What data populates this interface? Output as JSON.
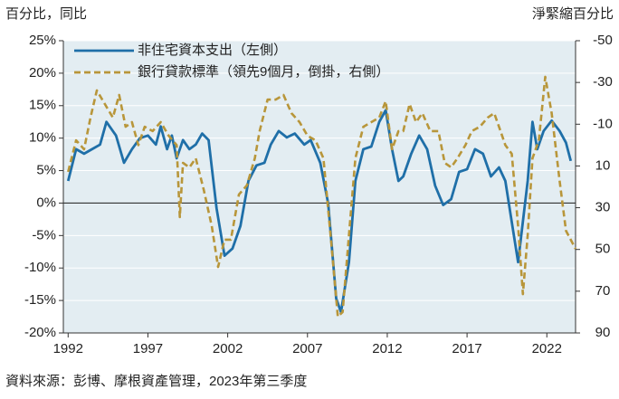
{
  "chart_data": {
    "type": "line",
    "ylabel": "百分比，同比",
    "y2label": "淨緊縮百分比",
    "source": "資料來源：彭博、摩根資產管理，2023年第三季度",
    "xlim": [
      1991.7,
      2023.8
    ],
    "xticks": [
      1992,
      1997,
      2002,
      2007,
      2012,
      2017,
      2022
    ],
    "ylim": [
      -20,
      25
    ],
    "yticks": [
      {
        "value": -20,
        "label": "-20%"
      },
      {
        "value": -15,
        "label": "-15%"
      },
      {
        "value": -10,
        "label": "-10%"
      },
      {
        "value": -5,
        "label": "-5%"
      },
      {
        "value": 0,
        "label": "0%"
      },
      {
        "value": 5,
        "label": "5%"
      },
      {
        "value": 10,
        "label": "10%"
      },
      {
        "value": 15,
        "label": "15%"
      },
      {
        "value": 20,
        "label": "20%"
      },
      {
        "value": 25,
        "label": "25%"
      }
    ],
    "y2lim": [
      -50,
      90
    ],
    "y2_inverted": true,
    "y2ticks": [
      -50,
      -30,
      -10,
      10,
      30,
      50,
      70,
      90
    ],
    "grid": true,
    "legend": "top-left",
    "series": [
      {
        "name": "非住宅資本支出（左側）",
        "color": "#1f6fa8",
        "style": "solid",
        "axis": "y",
        "x": [
          1992.0,
          1992.5,
          1993.0,
          1993.5,
          1994.0,
          1994.4,
          1995.0,
          1995.5,
          1996.0,
          1996.5,
          1997.0,
          1997.5,
          1997.8,
          1998.2,
          1998.5,
          1998.8,
          1999.2,
          1999.6,
          2000.0,
          2000.4,
          2000.8,
          2001.3,
          2001.8,
          2002.3,
          2002.8,
          2003.3,
          2003.8,
          2004.3,
          2004.7,
          2005.2,
          2005.7,
          2006.2,
          2006.8,
          2007.2,
          2007.8,
          2008.3,
          2008.8,
          2009.1,
          2009.6,
          2010.0,
          2010.5,
          2011.0,
          2011.5,
          2011.9,
          2012.3,
          2012.7,
          2013.0,
          2013.5,
          2014.0,
          2014.5,
          2015.0,
          2015.5,
          2016.0,
          2016.5,
          2017.0,
          2017.5,
          2018.0,
          2018.5,
          2019.0,
          2019.4,
          2019.8,
          2020.2,
          2020.8,
          2021.1,
          2021.4,
          2021.8,
          2022.3,
          2022.8,
          2023.2,
          2023.5
        ],
        "values": [
          3.4,
          8.3,
          7.6,
          8.3,
          9,
          12.5,
          10.4,
          6.2,
          8.3,
          10,
          10.4,
          9,
          11.8,
          8.3,
          10.4,
          6.9,
          9.7,
          8.3,
          9,
          10.7,
          9.7,
          -0.8,
          -8.1,
          -7,
          -3.5,
          3.4,
          5.8,
          6.2,
          9,
          11.1,
          10.1,
          10.7,
          9,
          9.7,
          6.2,
          -0.1,
          -14.7,
          -16.8,
          -9.1,
          3.4,
          8.3,
          8.7,
          12.5,
          14.3,
          8.3,
          3.4,
          4.1,
          7.6,
          10.4,
          8.3,
          2.7,
          -0.3,
          0.6,
          4.8,
          5.2,
          8.3,
          7.6,
          4.1,
          5.5,
          3.4,
          -2.9,
          -9.1,
          3.4,
          12.5,
          8.3,
          11.1,
          12.7,
          11.1,
          9.3,
          6.5
        ]
      },
      {
        "name": "銀行貸款標準（領先9個月，倒掛，右側）",
        "color": "#b8963a",
        "style": "dashed",
        "axis": "y2",
        "x": [
          1992.0,
          1992.5,
          1993.0,
          1993.4,
          1993.8,
          1994.3,
          1994.8,
          1995.2,
          1995.6,
          1996.0,
          1996.4,
          1996.8,
          1997.3,
          1997.8,
          1998.3,
          1998.8,
          1999.0,
          1999.2,
          1999.6,
          2000.0,
          2000.5,
          2001.0,
          2001.4,
          2001.8,
          2002.2,
          2002.7,
          2003.2,
          2003.7,
          2004.0,
          2004.5,
          2005.0,
          2005.5,
          2006.0,
          2006.5,
          2007.0,
          2007.5,
          2008.0,
          2008.5,
          2008.9,
          2009.2,
          2009.6,
          2010.0,
          2010.5,
          2011.0,
          2011.5,
          2011.9,
          2012.3,
          2012.7,
          2013.0,
          2013.4,
          2013.8,
          2014.2,
          2014.7,
          2015.2,
          2015.6,
          2016.0,
          2016.4,
          2016.9,
          2017.3,
          2017.8,
          2018.3,
          2018.7,
          2019.1,
          2019.4,
          2019.8,
          2020.2,
          2020.5,
          2020.8,
          2021.1,
          2021.5,
          2021.9,
          2022.3,
          2022.8,
          2023.2,
          2023.8
        ],
        "values": [
          12.8,
          -2.3,
          2,
          -13.2,
          -26.2,
          -19.7,
          -13.2,
          -24,
          -8.8,
          -11,
          0,
          -8.8,
          -6.7,
          -11,
          -4.5,
          0,
          34.5,
          8.5,
          10.7,
          6.3,
          21.5,
          38.8,
          58.4,
          45.3,
          45.3,
          23.7,
          19.3,
          6.3,
          -6.7,
          -21.8,
          -21.8,
          -24,
          -15.3,
          -11,
          -4.5,
          -2.3,
          6.3,
          47.5,
          82.2,
          80,
          43.2,
          6.3,
          -8.8,
          -11,
          -13.2,
          -21,
          2,
          -6.7,
          -6.7,
          -19.7,
          -11,
          -15.3,
          -6.7,
          -6.7,
          8.5,
          10.7,
          6.3,
          0,
          -6.7,
          -8.8,
          -13.2,
          -15.3,
          -6.7,
          0,
          4.2,
          38.8,
          71.4,
          43.2,
          6.3,
          -2.3,
          -32.7,
          -15.3,
          17.2,
          41,
          49.7
        ]
      }
    ]
  }
}
